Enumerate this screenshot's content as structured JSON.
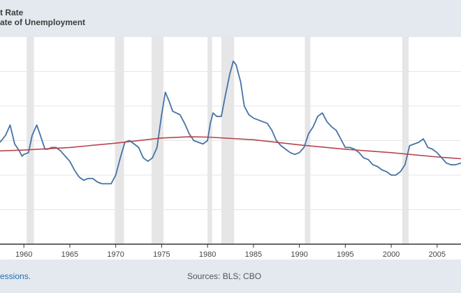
{
  "legend": {
    "line1": "t Rate",
    "line2": "ate of Unemployment"
  },
  "footer": {
    "note": "essions.",
    "sources": "Sources: BLS; CBO"
  },
  "chart_data": {
    "type": "line",
    "title": "",
    "xlabel": "",
    "ylabel": "",
    "xlim": [
      1957.4,
      2007.6
    ],
    "ylim": [
      0,
      12
    ],
    "grid": true,
    "y_gridlines": [
      2,
      4,
      6,
      8,
      10
    ],
    "x_tick_labels": [
      "1960",
      "1965",
      "1970",
      "1975",
      "1980",
      "1985",
      "1990",
      "1995",
      "2000",
      "2005"
    ],
    "x_ticks": [
      1960,
      1965,
      1970,
      1975,
      1980,
      1985,
      1990,
      1995,
      2000,
      2005
    ],
    "recessions": [
      [
        1960.3,
        1961.1
      ],
      [
        1969.9,
        1970.9
      ],
      [
        1973.9,
        1975.2
      ],
      [
        1980.0,
        1980.5
      ],
      [
        1981.5,
        1982.9
      ],
      [
        1990.6,
        1991.2
      ],
      [
        2001.2,
        2001.9
      ]
    ],
    "series": [
      {
        "name": "Unemployment Rate",
        "color": "#4572a7",
        "x": [
          1957.4,
          1958.0,
          1958.5,
          1959.0,
          1959.5,
          1959.8,
          1960.0,
          1960.5,
          1960.9,
          1961.4,
          1961.8,
          1962.3,
          1962.6,
          1963.0,
          1963.5,
          1964.0,
          1964.5,
          1965.0,
          1965.5,
          1966.0,
          1966.5,
          1967.0,
          1967.5,
          1968.0,
          1968.5,
          1969.0,
          1969.5,
          1970.0,
          1970.5,
          1971.0,
          1971.5,
          1972.0,
          1972.5,
          1973.0,
          1973.5,
          1974.0,
          1974.5,
          1975.0,
          1975.4,
          1975.8,
          1976.2,
          1976.6,
          1977.0,
          1977.5,
          1978.0,
          1978.5,
          1979.0,
          1979.5,
          1980.0,
          1980.3,
          1980.6,
          1981.0,
          1981.5,
          1981.9,
          1982.4,
          1982.8,
          1983.1,
          1983.6,
          1984.0,
          1984.5,
          1985.0,
          1985.5,
          1986.0,
          1986.5,
          1987.0,
          1987.5,
          1988.0,
          1988.5,
          1989.0,
          1989.5,
          1990.0,
          1990.5,
          1991.0,
          1991.5,
          1992.0,
          1992.5,
          1993.0,
          1993.5,
          1994.0,
          1994.5,
          1995.0,
          1995.5,
          1996.0,
          1996.5,
          1997.0,
          1997.5,
          1998.0,
          1998.5,
          1999.0,
          1999.5,
          2000.0,
          2000.5,
          2001.0,
          2001.5,
          2002.0,
          2002.5,
          2003.0,
          2003.5,
          2004.0,
          2004.5,
          2005.0,
          2005.5,
          2006.0,
          2006.5,
          2007.0,
          2007.6
        ],
        "values": [
          5.9,
          6.3,
          6.9,
          5.8,
          5.4,
          5.1,
          5.2,
          5.3,
          6.3,
          6.9,
          6.3,
          5.5,
          5.5,
          5.6,
          5.6,
          5.4,
          5.1,
          4.8,
          4.3,
          3.9,
          3.7,
          3.8,
          3.8,
          3.6,
          3.5,
          3.5,
          3.5,
          4.0,
          5.0,
          5.9,
          6.0,
          5.8,
          5.6,
          5.0,
          4.8,
          5.0,
          5.6,
          7.5,
          8.8,
          8.3,
          7.7,
          7.6,
          7.5,
          7.0,
          6.4,
          6.0,
          5.9,
          5.8,
          6.0,
          7.0,
          7.6,
          7.4,
          7.4,
          8.5,
          9.8,
          10.6,
          10.4,
          9.4,
          8.0,
          7.5,
          7.3,
          7.2,
          7.1,
          7.0,
          6.6,
          6.0,
          5.7,
          5.5,
          5.3,
          5.2,
          5.3,
          5.6,
          6.4,
          6.8,
          7.4,
          7.6,
          7.1,
          6.8,
          6.6,
          6.1,
          5.6,
          5.6,
          5.5,
          5.3,
          5.0,
          4.9,
          4.6,
          4.5,
          4.3,
          4.2,
          4.0,
          4.0,
          4.2,
          4.6,
          5.7,
          5.8,
          5.9,
          6.1,
          5.6,
          5.5,
          5.3,
          5.0,
          4.7,
          4.6,
          4.6,
          4.7
        ]
      },
      {
        "name": "Natural Rate of Unemployment",
        "color": "#b5454d",
        "x": [
          1957.4,
          1960,
          1965,
          1970,
          1975,
          1978,
          1980,
          1985,
          1990,
          1995,
          2000,
          2005,
          2007.6
        ],
        "values": [
          5.4,
          5.45,
          5.6,
          5.85,
          6.15,
          6.22,
          6.2,
          6.05,
          5.75,
          5.5,
          5.3,
          5.05,
          4.95
        ]
      }
    ]
  }
}
